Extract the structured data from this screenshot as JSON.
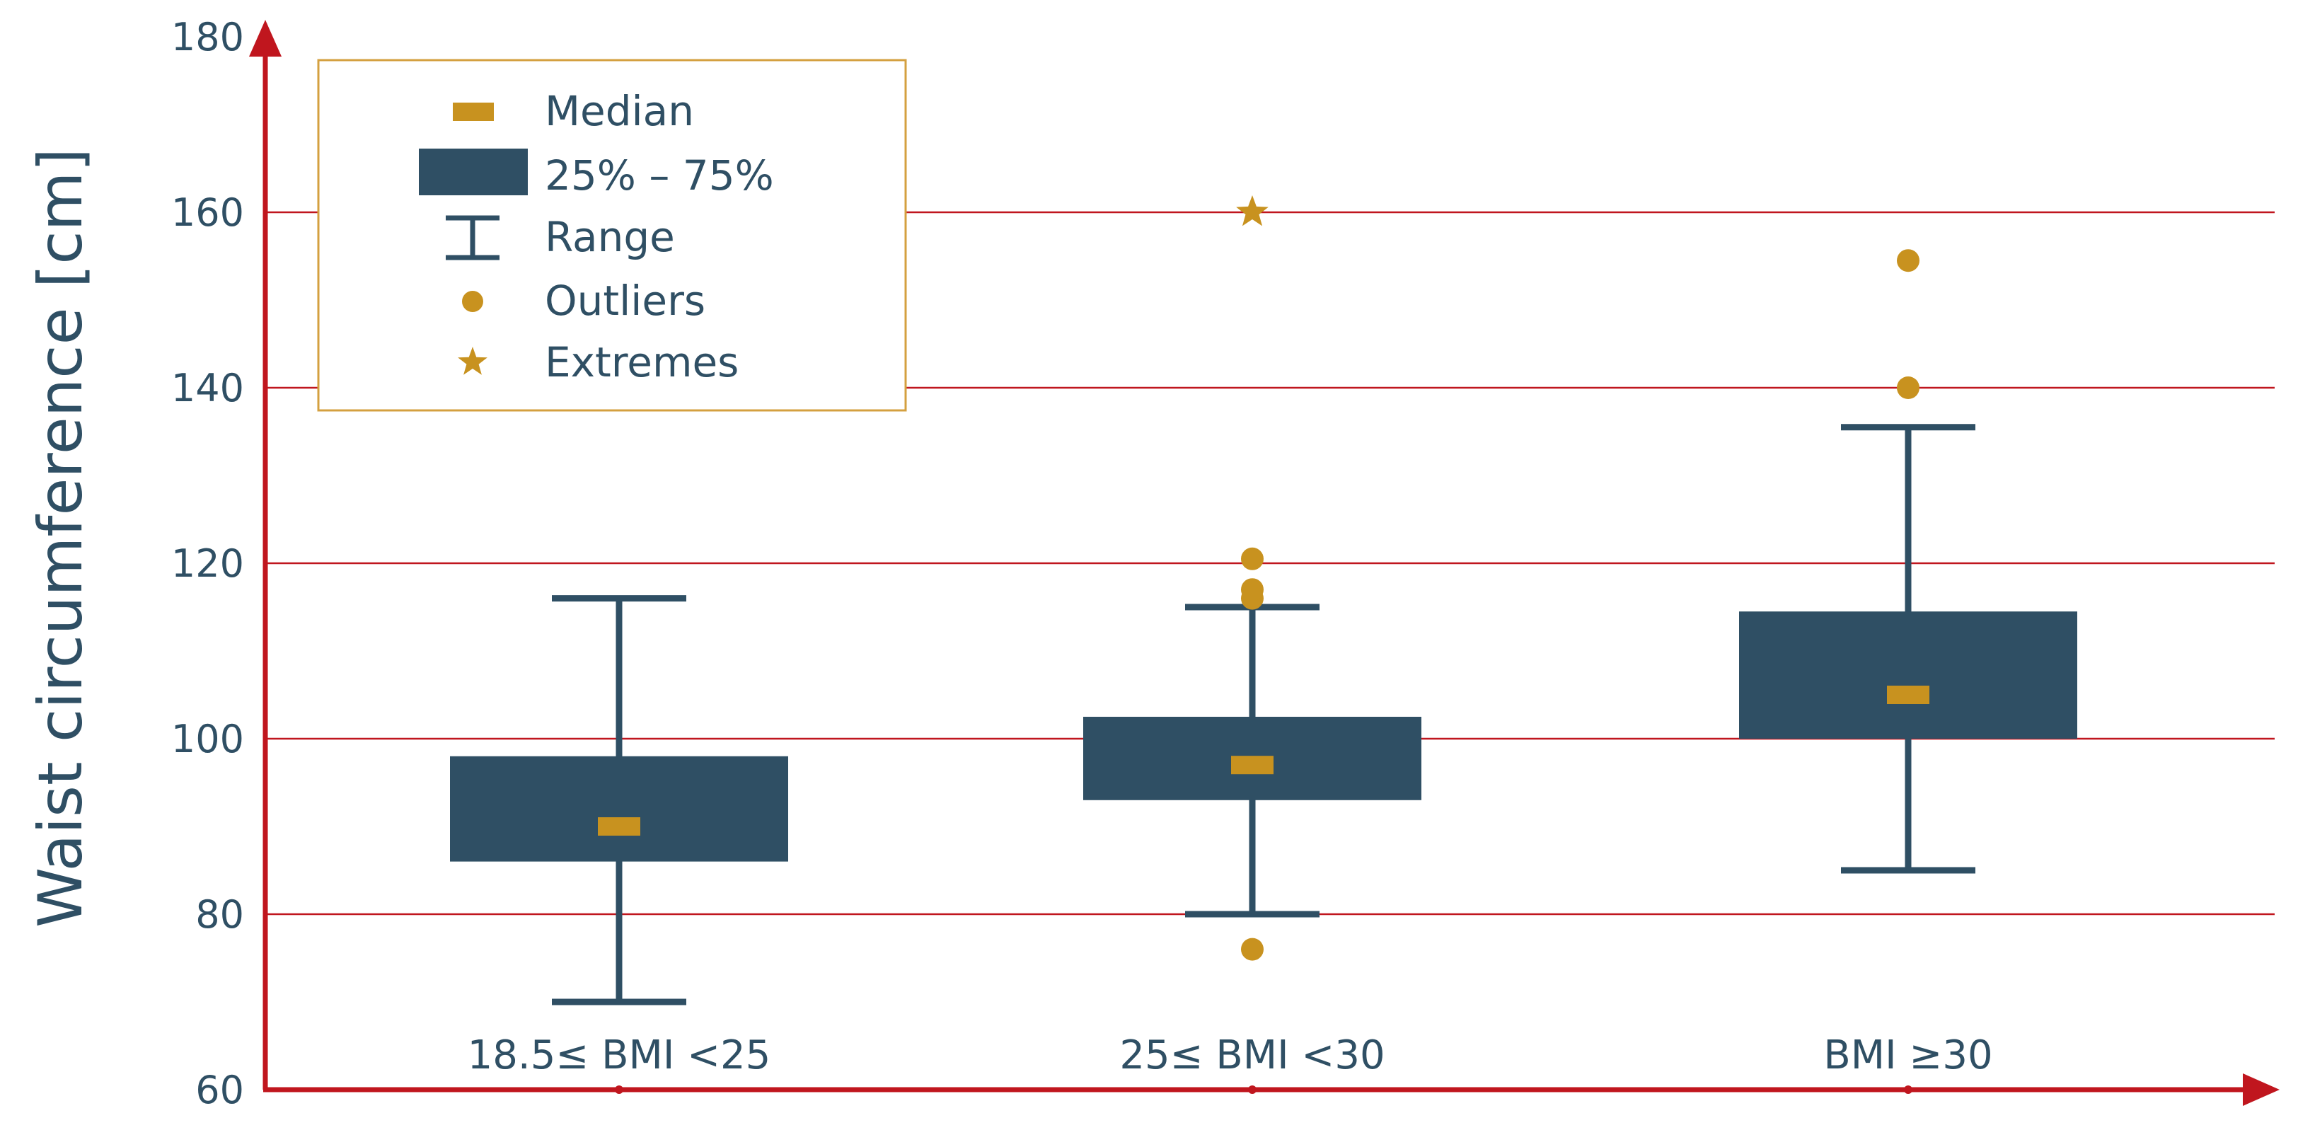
{
  "chart_data": {
    "type": "boxplot",
    "ylabel": "Waist circumference [cm]",
    "ylim": [
      60,
      180
    ],
    "yticks": [
      60,
      80,
      100,
      120,
      140,
      160,
      180
    ],
    "grid": true,
    "legend_position": "top-left",
    "legend": {
      "median": "Median",
      "iqr": "25% – 75%",
      "range": "Range",
      "outliers": "Outliers",
      "extremes": "Extremes"
    },
    "categories": [
      "18.5≤ BMI <25",
      "25≤ BMI <30",
      "BMI ≥30"
    ],
    "boxes": [
      {
        "whisker_low": 70,
        "q1": 86,
        "median": 90,
        "q3": 98,
        "whisker_high": 116,
        "outliers": [],
        "extremes": []
      },
      {
        "whisker_low": 80,
        "q1": 93,
        "median": 97,
        "q3": 102.5,
        "whisker_high": 115,
        "outliers": [
          76,
          116,
          117,
          120.5
        ],
        "extremes": [
          160
        ]
      },
      {
        "whisker_low": 85,
        "q1": 100,
        "median": 105,
        "q3": 114.5,
        "whisker_high": 135.5,
        "outliers": [
          140,
          154.5
        ],
        "extremes": []
      }
    ],
    "colors": {
      "box": "#2f4f64",
      "median": "#c8921f",
      "outlier": "#c8921f",
      "axis": "#c0161e",
      "grid": "#c0161e",
      "legend_border": "#d4a040",
      "text": "#2f4f64"
    }
  }
}
